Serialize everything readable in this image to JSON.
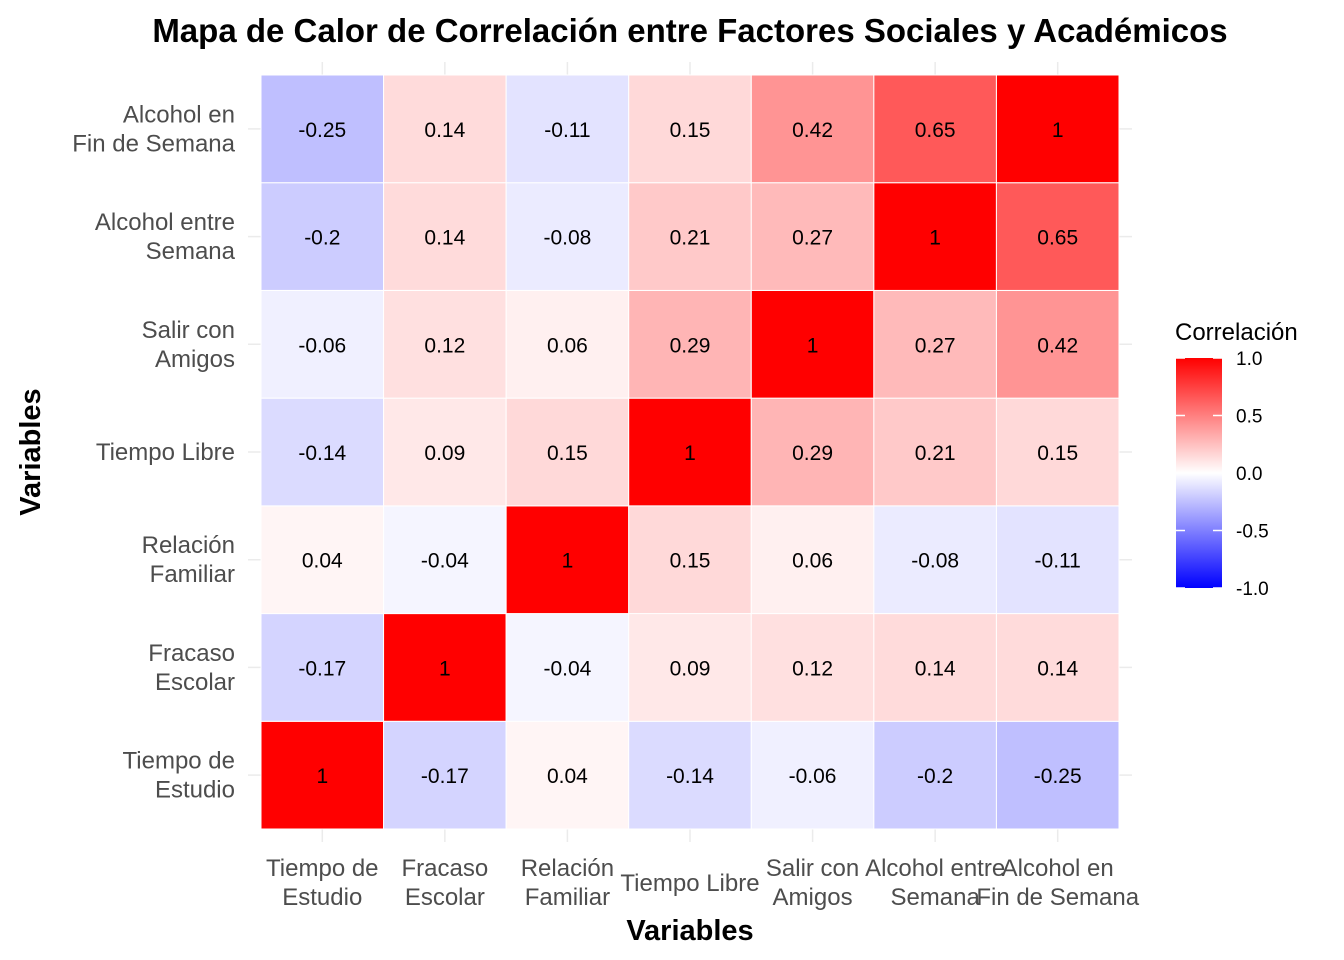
{
  "chart_data": {
    "type": "heatmap",
    "title": "Mapa de Calor de Correlación entre Factores Sociales y Académicos",
    "xlabel": "Variables",
    "ylabel": "Variables",
    "variables": [
      [
        "Tiempo de",
        "Estudio"
      ],
      [
        "Fracaso",
        "Escolar"
      ],
      [
        "Relación",
        "Familiar"
      ],
      [
        "Tiempo Libre"
      ],
      [
        "Salir con",
        "Amigos"
      ],
      [
        "Alcohol entre",
        "Semana"
      ],
      [
        "Alcohol en",
        "Fin de Semana"
      ]
    ],
    "matrix": [
      [
        1,
        -0.17,
        0.04,
        -0.14,
        -0.06,
        -0.2,
        -0.25
      ],
      [
        -0.17,
        1,
        -0.04,
        0.09,
        0.12,
        0.14,
        0.14
      ],
      [
        0.04,
        -0.04,
        1,
        0.15,
        0.06,
        -0.08,
        -0.11
      ],
      [
        -0.14,
        0.09,
        0.15,
        1,
        0.29,
        0.21,
        0.15
      ],
      [
        -0.06,
        0.12,
        0.06,
        0.29,
        1,
        0.27,
        0.42
      ],
      [
        -0.2,
        0.14,
        -0.08,
        0.21,
        0.27,
        1,
        0.65
      ],
      [
        -0.25,
        0.14,
        -0.11,
        0.15,
        0.42,
        0.65,
        1
      ]
    ],
    "color_range": [
      -1,
      1
    ],
    "colors": {
      "low": "#0000ff",
      "mid": "#ffffff",
      "high": "#ff0000"
    },
    "legend": {
      "title": "Correlación",
      "ticks": [
        "1.0",
        "0.5",
        "0.0",
        "-0.5",
        "-1.0"
      ],
      "placement": "right"
    }
  }
}
